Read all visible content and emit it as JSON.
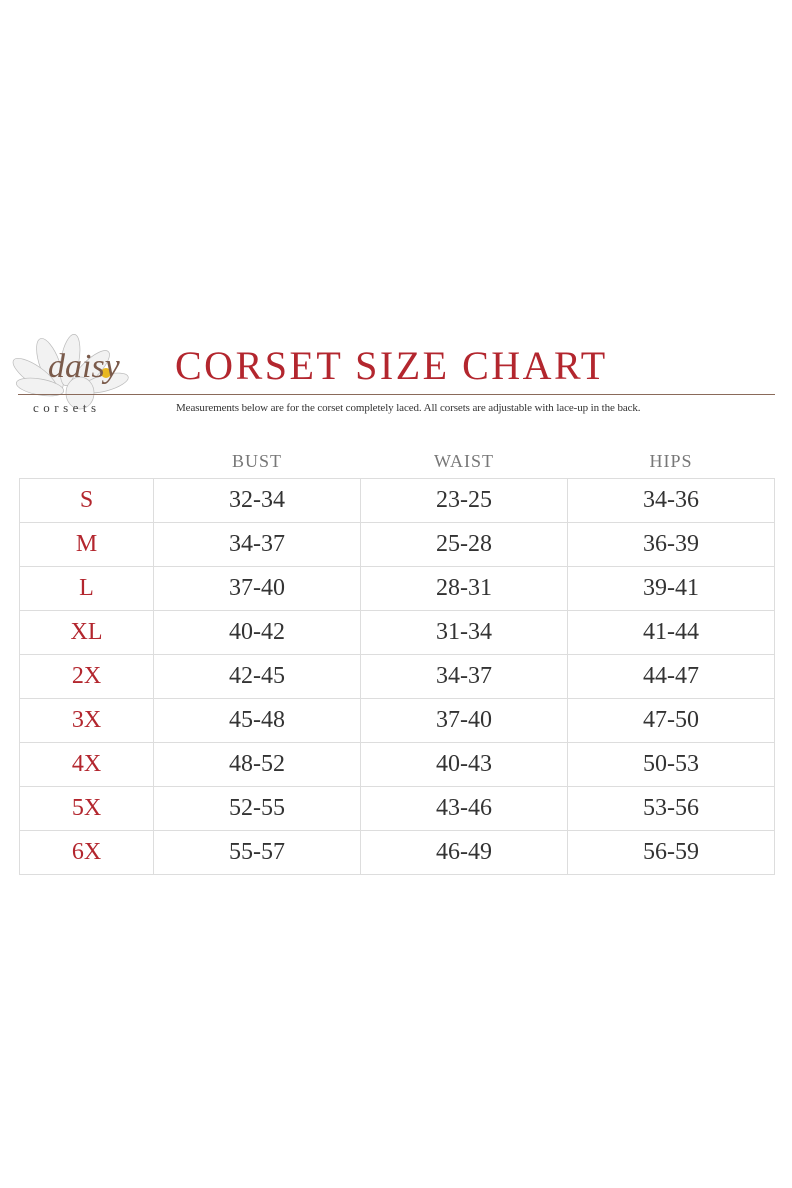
{
  "logo": {
    "script_text": "daisy",
    "sub_text": "corsets"
  },
  "header": {
    "title": "CORSET SIZE CHART",
    "subtitle": "Measurements below are for the corset completely laced.  All corsets are adjustable with lace-up in the back."
  },
  "colors": {
    "accent": "#b3262e",
    "text": "#333333",
    "grid": "#dddddd"
  },
  "table": {
    "columns": [
      "",
      "BUST",
      "WAIST",
      "HIPS"
    ],
    "rows": [
      {
        "size": "S",
        "bust": "32-34",
        "waist": "23-25",
        "hips": "34-36"
      },
      {
        "size": "M",
        "bust": "34-37",
        "waist": "25-28",
        "hips": "36-39"
      },
      {
        "size": "L",
        "bust": "37-40",
        "waist": "28-31",
        "hips": "39-41"
      },
      {
        "size": "XL",
        "bust": "40-42",
        "waist": "31-34",
        "hips": "41-44"
      },
      {
        "size": "2X",
        "bust": "42-45",
        "waist": "34-37",
        "hips": "44-47"
      },
      {
        "size": "3X",
        "bust": "45-48",
        "waist": "37-40",
        "hips": "47-50"
      },
      {
        "size": "4X",
        "bust": "48-52",
        "waist": "40-43",
        "hips": "50-53"
      },
      {
        "size": "5X",
        "bust": "52-55",
        "waist": "43-46",
        "hips": "53-56"
      },
      {
        "size": "6X",
        "bust": "55-57",
        "waist": "46-49",
        "hips": "56-59"
      }
    ]
  }
}
